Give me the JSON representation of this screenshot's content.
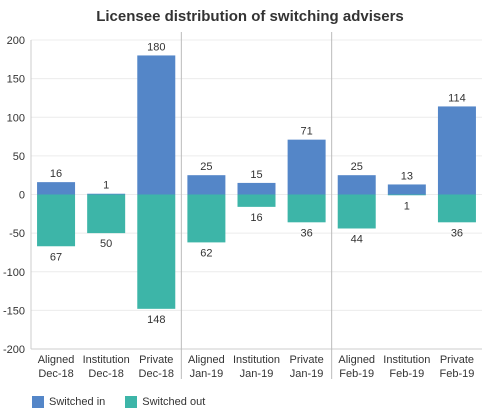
{
  "chart_data": {
    "type": "bar",
    "title": "Licensee distribution of switching advisers",
    "categories": [
      [
        "Aligned",
        "Dec-18"
      ],
      [
        "Institution",
        "Dec-18"
      ],
      [
        "Private",
        "Dec-18"
      ],
      [
        "Aligned",
        "Jan-19"
      ],
      [
        "Institution",
        "Jan-19"
      ],
      [
        "Private",
        "Jan-19"
      ],
      [
        "Aligned",
        "Feb-19"
      ],
      [
        "Institution",
        "Feb-19"
      ],
      [
        "Private",
        "Feb-19"
      ]
    ],
    "series": [
      {
        "name": "Switched in",
        "color": "#5486c8",
        "values": [
          16,
          1,
          180,
          25,
          15,
          71,
          25,
          13,
          114
        ]
      },
      {
        "name": "Switched out",
        "color": "#3db5a8",
        "values": [
          -67,
          -50,
          -148,
          -62,
          -16,
          -36,
          -44,
          -1,
          -36
        ]
      }
    ],
    "data_labels": {
      "in": [
        "16",
        "1",
        "180",
        "25",
        "15",
        "71",
        "25",
        "13",
        "114"
      ],
      "out": [
        "67",
        "50",
        "148",
        "62",
        "16",
        "36",
        "44",
        "1",
        "36"
      ]
    },
    "yticks": [
      "200",
      "150",
      "100",
      "50",
      "0",
      "-50",
      "-100",
      "-150",
      "-200"
    ],
    "ylim": [
      -200,
      200
    ],
    "stacked": true,
    "grid": true,
    "legend": "bottom-left"
  }
}
